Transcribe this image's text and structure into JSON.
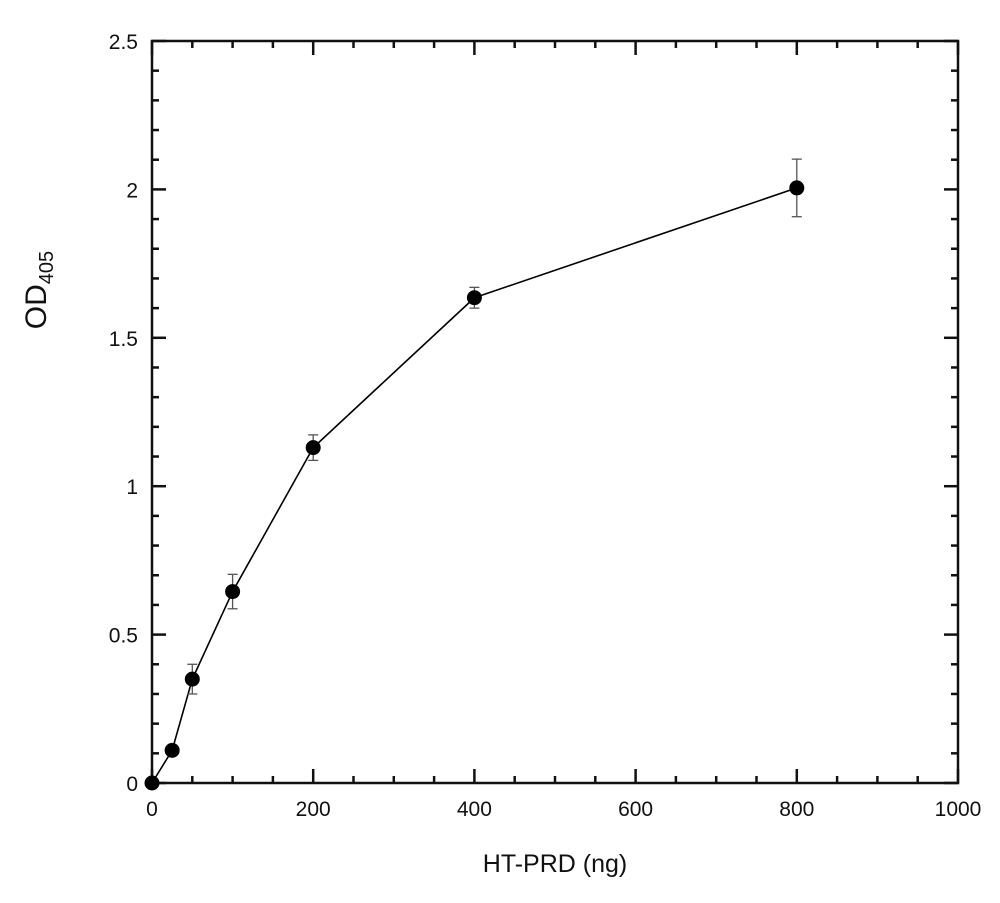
{
  "chart_data": {
    "type": "line",
    "title": "",
    "xlabel": "HT-PRD (ng)",
    "ylabel_main": "OD",
    "ylabel_sub": "405",
    "xlim": [
      0,
      1000
    ],
    "ylim": [
      0,
      2.5
    ],
    "x_ticks": [
      0,
      200,
      400,
      600,
      800,
      1000
    ],
    "x_tick_labels": [
      "0",
      "200",
      "400",
      "600",
      "800",
      "1000"
    ],
    "y_ticks": [
      0,
      0.5,
      1,
      1.5,
      2,
      2.5
    ],
    "y_tick_labels": [
      "0",
      "0.5",
      "1",
      "1.5",
      "2",
      "2.5"
    ],
    "x_minor_step": 50,
    "y_minor_step": 0.1,
    "grid": false,
    "marker": "filled-circle",
    "series": [
      {
        "x": [
          0,
          25,
          50,
          100,
          200,
          400,
          800
        ],
        "y": [
          0,
          0.11,
          0.35,
          0.645,
          1.13,
          1.635,
          2.005
        ],
        "error": [
          0,
          0.01,
          0.05,
          0.058,
          0.043,
          0.035,
          0.097
        ]
      }
    ],
    "colors": {
      "line": "#000000",
      "marker": "#000000",
      "errorbar": "#555555"
    }
  }
}
